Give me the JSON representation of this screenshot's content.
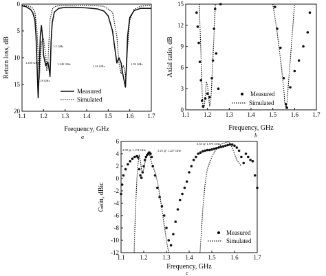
{
  "chart_data": [
    {
      "id": "a",
      "type": "line",
      "panel_label": "a",
      "xlabel": "Frequency, GHz",
      "ylabel": "Return loss, dB",
      "xlim": [
        1.1,
        1.7
      ],
      "ylim": [
        0,
        20
      ],
      "y_inverted": true,
      "xticks": [
        "1.1",
        "1.2",
        "1.3",
        "1.4",
        "1.5",
        "1.6",
        "1.7"
      ],
      "yticks": [
        "0",
        "5",
        "10",
        "15",
        "20"
      ],
      "legend": "bottom-left",
      "series": [
        {
          "name": "Measured",
          "style": "solid",
          "x": [
            1.1,
            1.12,
            1.14,
            1.15,
            1.16,
            1.165,
            1.17,
            1.175,
            1.18,
            1.185,
            1.19,
            1.195,
            1.2,
            1.21,
            1.22,
            1.225,
            1.23,
            1.235,
            1.24,
            1.25,
            1.27,
            1.3,
            1.35,
            1.4,
            1.45,
            1.48,
            1.5,
            1.52,
            1.53,
            1.54,
            1.55,
            1.56,
            1.565,
            1.57,
            1.575,
            1.58,
            1.585,
            1.59,
            1.6,
            1.62,
            1.65,
            1.7
          ],
          "y": [
            0.3,
            0.5,
            1.0,
            1.6,
            3.0,
            6.0,
            11.5,
            17.5,
            12.0,
            6.0,
            4.0,
            6.0,
            9.5,
            11.5,
            10.8,
            12.0,
            13.5,
            7.0,
            3.5,
            1.5,
            0.8,
            0.6,
            0.6,
            0.7,
            0.9,
            1.3,
            2.2,
            5.0,
            8.0,
            11.0,
            10.0,
            11.0,
            12.5,
            13.5,
            14.5,
            15.5,
            11.0,
            6.0,
            2.5,
            1.2,
            0.8,
            0.8
          ]
        },
        {
          "name": "Simulated",
          "style": "dotted",
          "x": [
            1.1,
            1.12,
            1.14,
            1.15,
            1.16,
            1.17,
            1.175,
            1.18,
            1.185,
            1.19,
            1.2,
            1.21,
            1.215,
            1.22,
            1.225,
            1.23,
            1.24,
            1.25,
            1.27,
            1.3,
            1.4,
            1.48,
            1.52,
            1.54,
            1.55,
            1.56,
            1.57,
            1.575,
            1.58,
            1.585,
            1.59,
            1.6,
            1.62,
            1.65,
            1.7
          ],
          "y": [
            0.2,
            0.3,
            0.5,
            0.8,
            1.5,
            5.0,
            10.0,
            14.0,
            11.0,
            7.0,
            6.5,
            9.5,
            12.5,
            11.0,
            7.0,
            3.0,
            1.0,
            0.5,
            0.3,
            0.2,
            0.2,
            0.4,
            1.5,
            6.0,
            11.0,
            13.0,
            11.5,
            12.0,
            13.5,
            12.0,
            8.0,
            3.0,
            1.0,
            0.4,
            0.2
          ]
        }
      ],
      "annotations": [
        "1.2 GHz",
        "1.185 GHz",
        "1.245 GHz",
        "1.51 GHz",
        "1.59 GHz",
        "1.18 GHz"
      ]
    },
    {
      "id": "b",
      "type": "scatter",
      "panel_label": "b",
      "xlabel": "Frequency, GHz",
      "ylabel": "Axial ratio, dB",
      "xlim": [
        1.1,
        1.7
      ],
      "ylim": [
        0,
        15
      ],
      "xticks": [
        "1.1",
        "1.2",
        "1.3",
        "1.4",
        "1.5",
        "1.6",
        "1.7"
      ],
      "yticks": [
        "0",
        "3",
        "6",
        "9",
        "12",
        "15"
      ],
      "legend": "bottom-right",
      "series": [
        {
          "name": "Measured",
          "style": "points",
          "x": [
            1.15,
            1.155,
            1.16,
            1.165,
            1.17,
            1.175,
            1.18,
            1.19,
            1.2,
            1.21,
            1.22,
            1.225,
            1.23,
            1.235,
            1.24,
            1.25,
            1.26,
            1.51,
            1.52,
            1.535,
            1.55,
            1.56,
            1.565,
            1.58,
            1.6,
            1.62,
            1.64,
            1.66,
            1.67
          ],
          "y": [
            13.8,
            11.8,
            9.5,
            6.8,
            4.2,
            1.3,
            0.5,
            1.6,
            2.3,
            1.8,
            4.5,
            7.0,
            11.5,
            14.3,
            8.0,
            3.0,
            15.0,
            14.6,
            11.5,
            8.8,
            4.5,
            0.8,
            0.3,
            3.2,
            5.5,
            7.0,
            9.0,
            11.0,
            13.8
          ]
        },
        {
          "name": "Simulated",
          "style": "dotted",
          "x": [
            1.162,
            1.168,
            1.172,
            1.176,
            1.18,
            1.185,
            1.19,
            1.195,
            1.2,
            1.205,
            1.21,
            1.215,
            1.22,
            1.226,
            1.232,
            1.236
          ],
          "y": [
            15,
            10,
            6,
            2,
            0.2,
            0.5,
            2,
            4,
            3.5,
            2,
            0.5,
            1,
            4,
            8,
            12,
            15
          ]
        },
        {
          "name": "Simulated",
          "style": "dotted",
          "x": [
            1.5,
            1.52,
            1.54,
            1.55,
            1.555,
            1.56,
            1.565,
            1.57,
            1.58,
            1.6
          ],
          "y": [
            15,
            11,
            6,
            3,
            1,
            0.2,
            1,
            3,
            7,
            15
          ]
        }
      ]
    },
    {
      "id": "c",
      "type": "scatter",
      "panel_label": "c",
      "xlabel": "Frequency, GHz",
      "ylabel": "Gain, dBic",
      "xlim": [
        1.1,
        1.7
      ],
      "ylim": [
        -12,
        6
      ],
      "xticks": [
        "1.1",
        "1.2",
        "1.3",
        "1.4",
        "1.5",
        "1.6",
        "1.7"
      ],
      "yticks": [
        "6",
        "4",
        "2",
        "0",
        "-2",
        "-4",
        "-6",
        "-8",
        "-10",
        "-12"
      ],
      "legend": "bottom-right",
      "series": [
        {
          "name": "Measured",
          "style": "points",
          "x": [
            1.1,
            1.105,
            1.11,
            1.12,
            1.13,
            1.14,
            1.15,
            1.16,
            1.17,
            1.175,
            1.18,
            1.185,
            1.19,
            1.195,
            1.2,
            1.205,
            1.21,
            1.215,
            1.22,
            1.225,
            1.23,
            1.235,
            1.24,
            1.25,
            1.26,
            1.27,
            1.28,
            1.29,
            1.3,
            1.31,
            1.32,
            1.33,
            1.34,
            1.35,
            1.36,
            1.37,
            1.38,
            1.39,
            1.4,
            1.41,
            1.42,
            1.43,
            1.44,
            1.45,
            1.46,
            1.47,
            1.48,
            1.49,
            1.5,
            1.51,
            1.52,
            1.53,
            1.54,
            1.55,
            1.56,
            1.57,
            1.58,
            1.59,
            1.6,
            1.61,
            1.62,
            1.63,
            1.64,
            1.65,
            1.66,
            1.67,
            1.68,
            1.69,
            1.7
          ],
          "y": [
            -2.5,
            -1.0,
            0.5,
            1.5,
            2.3,
            2.8,
            3.2,
            3.5,
            3.6,
            3.4,
            1.5,
            0.5,
            0.1,
            1.0,
            2.0,
            3.0,
            3.5,
            3.8,
            4.0,
            4.2,
            4.0,
            3.5,
            2.0,
            0.5,
            -1.5,
            -3.0,
            -4.5,
            -6.0,
            -8.0,
            -10.0,
            -10.8,
            -9.0,
            -7.0,
            -5.0,
            -3.5,
            -2.5,
            -1.5,
            -0.5,
            1.0,
            2.0,
            3.0,
            3.5,
            4.0,
            4.2,
            4.4,
            4.5,
            4.6,
            4.6,
            4.7,
            4.8,
            4.9,
            5.0,
            5.1,
            5.2,
            5.3,
            5.4,
            5.5,
            5.5,
            5.3,
            5.0,
            4.5,
            3.5,
            2.5,
            4.0,
            3.5,
            3.0,
            2.8,
            0.5,
            -1.5
          ]
        },
        {
          "name": "Simulated",
          "style": "dotted",
          "x": [
            1.158,
            1.16,
            1.165,
            1.17,
            1.175,
            1.18,
            1.185,
            1.19,
            1.195,
            1.2,
            1.205,
            1.21,
            1.215,
            1.22,
            1.225,
            1.23,
            1.235,
            1.24,
            1.25,
            1.26,
            1.27,
            1.28,
            1.29,
            1.3,
            1.305,
            1.31
          ],
          "y": [
            -12,
            -9,
            -4,
            0,
            2.5,
            3.8,
            3.0,
            1.5,
            1.0,
            1.5,
            2.5,
            3.5,
            4.0,
            4.3,
            4.0,
            3.2,
            2.5,
            2.0,
            1.0,
            -0.5,
            -2.5,
            -5.0,
            -7.5,
            -10.0,
            -11.0,
            -12.0
          ]
        },
        {
          "name": "Simulated",
          "style": "dotted",
          "x": [
            1.448,
            1.455,
            1.46,
            1.47,
            1.48,
            1.5,
            1.52,
            1.54,
            1.55,
            1.56,
            1.57,
            1.575,
            1.58,
            1.59,
            1.6,
            1.61,
            1.62,
            1.63
          ],
          "y": [
            -12,
            -8,
            -5,
            -1,
            1.5,
            3.5,
            4.8,
            5.5,
            5.7,
            5.8,
            5.9,
            5.9,
            5.7,
            5.0,
            4.0,
            3.0,
            2.5,
            2.0
          ]
        }
      ],
      "annotations": [
        "2.98 @ 1.174 GHz",
        "3.25 @ 1.227 GHz",
        "5.55 @ 1.575 GHz"
      ]
    }
  ]
}
